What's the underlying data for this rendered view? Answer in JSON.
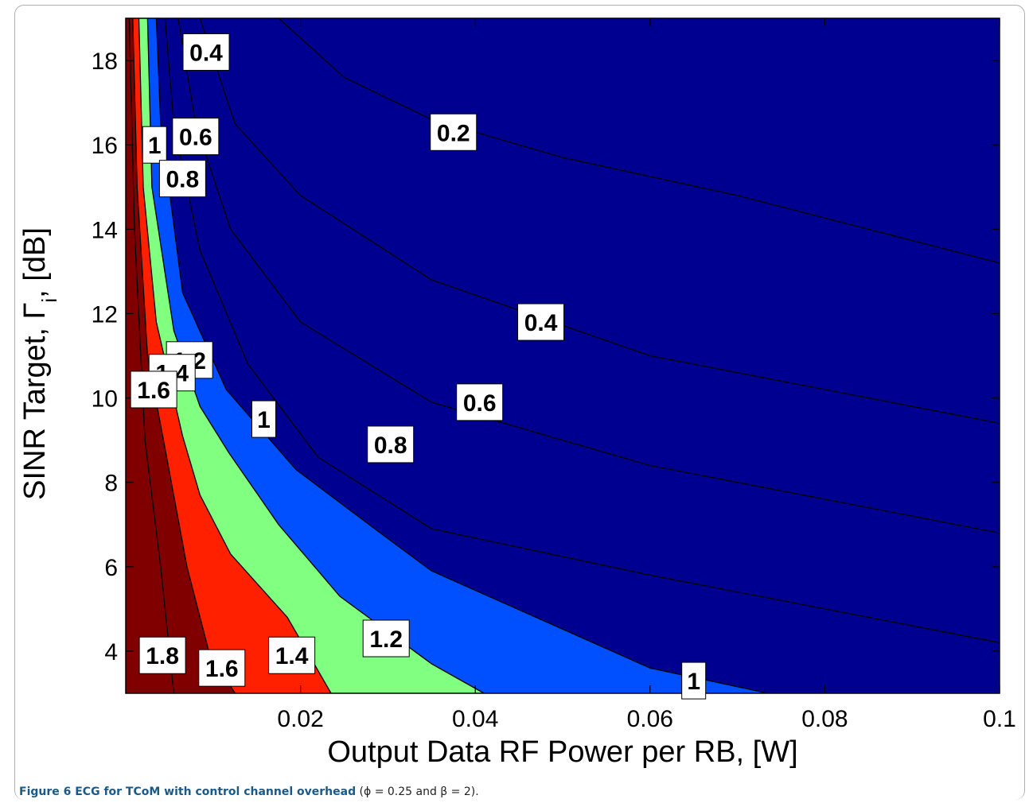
{
  "chart_data": {
    "type": "contour",
    "xlabel": "Output Data RF Power per RB, [W]",
    "ylabel": "SINR Target, Γ",
    "ylabel_sub": "i",
    "ylabel_suffix": ", [dB]",
    "xlim": [
      0,
      0.1
    ],
    "ylim": [
      3,
      19
    ],
    "x_ticks": [
      {
        "value": 0.02,
        "label": "0.02"
      },
      {
        "value": 0.04,
        "label": "0.04"
      },
      {
        "value": 0.06,
        "label": "0.06"
      },
      {
        "value": 0.08,
        "label": "0.08"
      },
      {
        "value": 0.1,
        "label": "0.1"
      }
    ],
    "y_ticks": [
      {
        "value": 4,
        "label": "4"
      },
      {
        "value": 6,
        "label": "6"
      },
      {
        "value": 8,
        "label": "8"
      },
      {
        "value": 10,
        "label": "10"
      },
      {
        "value": 12,
        "label": "12"
      },
      {
        "value": 14,
        "label": "14"
      },
      {
        "value": 16,
        "label": "16"
      },
      {
        "value": 18,
        "label": "18"
      }
    ],
    "fill_regions": [
      {
        "level": "background",
        "color": "#000090"
      },
      {
        "level": 1.0,
        "color": "#0050ff"
      },
      {
        "level": 1.2,
        "color": "#80ff80"
      },
      {
        "level": 1.4,
        "color": "#ff2000"
      },
      {
        "level": 1.6,
        "color": "#800000"
      }
    ],
    "contours": [
      {
        "level": 0.2,
        "points": [
          [
            0.0175,
            19
          ],
          [
            0.025,
            17.6
          ],
          [
            0.035,
            16.6
          ],
          [
            0.05,
            15.7
          ],
          [
            0.07,
            14.8
          ],
          [
            0.1,
            13.2
          ]
        ]
      },
      {
        "level": 0.4,
        "points": [
          [
            0.0085,
            19
          ],
          [
            0.0125,
            16.5
          ],
          [
            0.02,
            14.8
          ],
          [
            0.035,
            12.8
          ],
          [
            0.06,
            11.0
          ],
          [
            0.1,
            9.4
          ]
        ]
      },
      {
        "level": 0.6,
        "points": [
          [
            0.006,
            19
          ],
          [
            0.008,
            16.5
          ],
          [
            0.012,
            14.0
          ],
          [
            0.02,
            11.8
          ],
          [
            0.035,
            9.9
          ],
          [
            0.06,
            8.4
          ],
          [
            0.1,
            6.8
          ]
        ]
      },
      {
        "level": 0.8,
        "points": [
          [
            0.0045,
            19
          ],
          [
            0.0055,
            16.5
          ],
          [
            0.0085,
            13.5
          ],
          [
            0.014,
            10.8
          ],
          [
            0.022,
            8.6
          ],
          [
            0.035,
            6.9
          ],
          [
            0.06,
            5.8
          ],
          [
            0.1,
            4.2
          ]
        ]
      },
      {
        "level": 1.0,
        "points": [
          [
            0.0035,
            19
          ],
          [
            0.004,
            16.5
          ],
          [
            0.0065,
            12.5
          ],
          [
            0.0115,
            10.2
          ],
          [
            0.0195,
            8.3
          ],
          [
            0.0285,
            6.9
          ],
          [
            0.035,
            5.9
          ],
          [
            0.06,
            3.6
          ],
          [
            0.0735,
            3
          ]
        ]
      },
      {
        "level": 1.2,
        "points": [
          [
            0.0025,
            19
          ],
          [
            0.003,
            15.0
          ],
          [
            0.0055,
            11.6
          ],
          [
            0.0085,
            9.8
          ],
          [
            0.0118,
            8.7
          ],
          [
            0.0175,
            7.0
          ],
          [
            0.0245,
            5.3
          ],
          [
            0.035,
            3.7
          ],
          [
            0.041,
            3
          ]
        ]
      },
      {
        "level": 1.4,
        "points": [
          [
            0.0015,
            19
          ],
          [
            0.002,
            15.0
          ],
          [
            0.0035,
            11.8
          ],
          [
            0.0065,
            9.1
          ],
          [
            0.0085,
            7.7
          ],
          [
            0.012,
            6.3
          ],
          [
            0.0185,
            4.8
          ],
          [
            0.0235,
            3
          ]
        ]
      },
      {
        "level": 1.6,
        "points": [
          [
            0.0008,
            19
          ],
          [
            0.0013,
            15.0
          ],
          [
            0.0025,
            11.0
          ],
          [
            0.0045,
            8.8
          ],
          [
            0.007,
            6.0
          ],
          [
            0.0095,
            4.0
          ],
          [
            0.0125,
            3
          ]
        ]
      },
      {
        "level": 1.8,
        "points": [
          [
            0.0004,
            19
          ],
          [
            0.001,
            14.0
          ],
          [
            0.0022,
            9.0
          ],
          [
            0.004,
            6.0
          ],
          [
            0.005,
            4.0
          ],
          [
            0.0055,
            3
          ]
        ]
      }
    ],
    "labels": [
      {
        "text": "0.4",
        "x": 0.0092,
        "y": 18.2
      },
      {
        "text": "0.2",
        "x": 0.0375,
        "y": 16.3
      },
      {
        "text": "1",
        "x": 0.0033,
        "y": 16.0
      },
      {
        "text": "0.6",
        "x": 0.008,
        "y": 16.2
      },
      {
        "text": "0.8",
        "x": 0.0065,
        "y": 15.2
      },
      {
        "text": "0.4",
        "x": 0.0475,
        "y": 11.8
      },
      {
        "text": "1.2",
        "x": 0.0073,
        "y": 10.9
      },
      {
        "text": "1.4",
        "x": 0.0053,
        "y": 10.6
      },
      {
        "text": "1.6",
        "x": 0.0032,
        "y": 10.2
      },
      {
        "text": "1",
        "x": 0.0158,
        "y": 9.5
      },
      {
        "text": "0.6",
        "x": 0.0405,
        "y": 9.9
      },
      {
        "text": "0.8",
        "x": 0.0303,
        "y": 8.9
      },
      {
        "text": "1.8",
        "x": 0.0042,
        "y": 3.9
      },
      {
        "text": "1.6",
        "x": 0.011,
        "y": 3.6
      },
      {
        "text": "1.4",
        "x": 0.019,
        "y": 3.9
      },
      {
        "text": "1.2",
        "x": 0.0298,
        "y": 4.3
      },
      {
        "text": "1",
        "x": 0.065,
        "y": 3.3
      }
    ]
  },
  "caption": {
    "lead": "Figure 6 ECG for TCoM with control channel overhead",
    "rest": " (ϕ = 0.25 and β = 2)."
  }
}
